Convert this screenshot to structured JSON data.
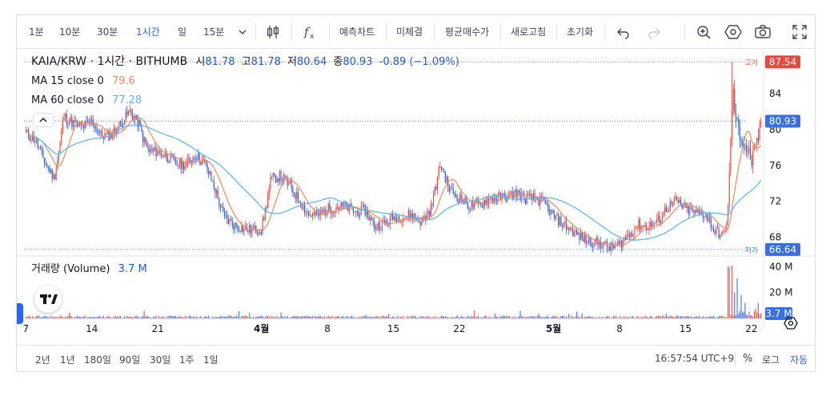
{
  "toolbar": {
    "intervals": [
      "1분",
      "10분",
      "30분",
      "1시간",
      "일",
      "15분"
    ],
    "active_interval": "1시간",
    "buttons": [
      "예측차트",
      "미체결",
      "평균매수가",
      "새로고침",
      "초기화"
    ],
    "icons": [
      "chevron-down-icon",
      "candles-icon",
      "fx-icon",
      "undo-icon",
      "redo-icon",
      "magic-icon",
      "settings-icon",
      "camera-icon",
      "fullscreen-icon"
    ]
  },
  "legend": {
    "symbol": "KAIA/KRW · 1시간 · BITHUMB",
    "o_label": "시",
    "o_value": "81.78",
    "h_label": "고",
    "h_value": "81.78",
    "l_label": "저",
    "l_value": "80.64",
    "c_label": "종",
    "c_value": "80.93",
    "change": "-0.89 (−1.09%)",
    "ma15_label": "MA 15 close 0",
    "ma15_value": "79.6",
    "ma60_label": "MA 60 close 0",
    "ma60_value": "77.28",
    "volume_label": "거래량 (Volume)",
    "volume_value": "3.7 M"
  },
  "price_markers": {
    "high_label": "고가",
    "high_value": "87.54",
    "low_label": "저가",
    "low_value": "66.64",
    "last_value": "80.93"
  },
  "colors": {
    "up": "#e5483d",
    "down": "#2d5fd9",
    "ma15": "#f08a5d",
    "ma60": "#5ab2ec",
    "accent": "#2962ff",
    "high_marker": "#e5483d",
    "low_marker": "#3a6fe0"
  },
  "chart_data": {
    "type": "candlestick",
    "title": "KAIA/KRW · 1시간 · BITHUMB",
    "ylim": [
      66,
      89
    ],
    "y_ticks": [
      68,
      72,
      76,
      80,
      84
    ],
    "y_tick_labels": [
      "68",
      "72",
      "76",
      "80",
      "84"
    ],
    "volume_ticks": [
      "20 M",
      "40 M"
    ],
    "volume_tick_values": [
      20,
      40
    ],
    "volume_unit": "M",
    "x_ticks": [
      "7",
      "14",
      "21",
      "4월",
      "8",
      "15",
      "22",
      "5월",
      "8",
      "15",
      "22"
    ],
    "x_tick_days": [
      7,
      14,
      21,
      32,
      39,
      46,
      53,
      63,
      70,
      77,
      84
    ],
    "x_day_range": [
      6.8,
      85.2
    ],
    "close_path": [
      [
        7,
        79.6
      ],
      [
        8,
        78.8
      ],
      [
        9,
        76.4
      ],
      [
        10,
        74.6
      ],
      [
        10.5,
        77.5
      ],
      [
        11,
        81.5
      ],
      [
        12,
        80.7
      ],
      [
        13,
        80.3
      ],
      [
        14,
        80.9
      ],
      [
        15,
        79.3
      ],
      [
        16,
        79.4
      ],
      [
        17,
        80.6
      ],
      [
        18,
        82.0
      ],
      [
        19,
        80.6
      ],
      [
        19.5,
        78.8
      ],
      [
        20,
        77.6
      ],
      [
        21,
        77.5
      ],
      [
        22,
        77.0
      ],
      [
        23,
        76.2
      ],
      [
        24,
        76.1
      ],
      [
        25,
        77.2
      ],
      [
        26,
        76.2
      ],
      [
        27,
        73.6
      ],
      [
        28,
        70.3
      ],
      [
        29,
        69.4
      ],
      [
        30,
        69.0
      ],
      [
        31,
        68.8
      ],
      [
        32,
        68.9
      ],
      [
        32.5,
        71.5
      ],
      [
        33,
        74.5
      ],
      [
        34,
        74.8
      ],
      [
        35,
        73.8
      ],
      [
        36,
        72.1
      ],
      [
        37,
        70.5
      ],
      [
        38,
        70.5
      ],
      [
        39,
        71.1
      ],
      [
        40,
        71.4
      ],
      [
        41,
        71.4
      ],
      [
        42,
        70.8
      ],
      [
        43,
        71.0
      ],
      [
        44,
        69.2
      ],
      [
        45,
        69.5
      ],
      [
        46,
        70.2
      ],
      [
        47,
        70.3
      ],
      [
        48,
        70.5
      ],
      [
        49,
        69.7
      ],
      [
        50,
        71.2
      ],
      [
        51,
        76.2
      ],
      [
        52,
        73.2
      ],
      [
        53,
        72.4
      ],
      [
        54,
        71.5
      ],
      [
        55,
        71.6
      ],
      [
        56,
        72.2
      ],
      [
        57,
        72.4
      ],
      [
        58,
        72.5
      ],
      [
        59,
        73.0
      ],
      [
        60,
        72.3
      ],
      [
        61,
        72.4
      ],
      [
        62,
        71.8
      ],
      [
        63,
        70.3
      ],
      [
        64,
        69.5
      ],
      [
        65,
        68.7
      ],
      [
        66,
        67.9
      ],
      [
        67,
        67.5
      ],
      [
        68,
        67.3
      ],
      [
        69,
        66.8
      ],
      [
        70,
        67.2
      ],
      [
        71,
        68.3
      ],
      [
        72,
        69.4
      ],
      [
        73,
        69.2
      ],
      [
        74,
        69.7
      ],
      [
        75,
        71.3
      ],
      [
        76,
        72.0
      ],
      [
        77,
        71.2
      ],
      [
        78,
        70.7
      ],
      [
        79,
        70.6
      ],
      [
        79.5,
        70.0
      ],
      [
        80,
        68.8
      ],
      [
        81,
        68.1
      ],
      [
        81.5,
        70.5
      ],
      [
        82,
        84.5
      ],
      [
        82.4,
        80.5
      ],
      [
        83,
        79.0
      ],
      [
        84,
        76.5
      ],
      [
        84.5,
        77.8
      ],
      [
        85,
        80.9
      ]
    ],
    "high": 87.54,
    "low": 66.64,
    "last": 80.93,
    "volume_spikes": [
      [
        81.6,
        40
      ],
      [
        81.9,
        41
      ],
      [
        82.2,
        20
      ],
      [
        82.5,
        31
      ],
      [
        82.9,
        18
      ],
      [
        83.3,
        12
      ],
      [
        84.7,
        12
      ],
      [
        85.0,
        4
      ]
    ]
  },
  "bottom": {
    "ranges": [
      "2년",
      "1년",
      "180일",
      "90일",
      "30일",
      "1주",
      "1일"
    ],
    "time": "16:57:54 UTC+9",
    "percent": "%",
    "log": "로그",
    "auto": "자동"
  }
}
